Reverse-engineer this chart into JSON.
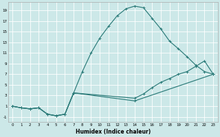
{
  "xlabel": "Humidex (Indice chaleur)",
  "bg_color": "#cce8e8",
  "line_color": "#2a7a78",
  "xlim": [
    -0.5,
    23.5
  ],
  "ylim": [
    -2.0,
    20.5
  ],
  "xticks": [
    0,
    1,
    2,
    3,
    4,
    5,
    6,
    7,
    8,
    9,
    10,
    11,
    12,
    13,
    14,
    15,
    16,
    17,
    18,
    19,
    20,
    21,
    22,
    23
  ],
  "yticks": [
    -1,
    1,
    3,
    5,
    7,
    9,
    11,
    13,
    15,
    17,
    19
  ],
  "curve1_x": [
    0,
    1,
    2,
    3,
    4,
    5,
    6,
    7,
    8,
    9,
    10,
    11,
    12,
    13,
    14,
    15,
    16,
    17,
    18,
    19,
    20,
    21,
    22,
    23
  ],
  "curve1_y": [
    1.0,
    0.7,
    0.5,
    0.7,
    -0.5,
    -0.8,
    -0.5,
    3.5,
    7.5,
    11.0,
    13.8,
    16.0,
    18.0,
    19.3,
    19.8,
    19.5,
    17.5,
    15.5,
    13.2,
    11.8,
    10.3,
    8.7,
    7.5,
    7.0
  ],
  "curve2_x": [
    0,
    1,
    2,
    3,
    4,
    5,
    6,
    7,
    14,
    15,
    16,
    17,
    18,
    19,
    20,
    21,
    22,
    23
  ],
  "curve2_y": [
    1.0,
    0.7,
    0.5,
    0.7,
    -0.5,
    -0.8,
    -0.5,
    3.5,
    2.5,
    3.3,
    4.5,
    5.5,
    6.2,
    7.0,
    7.5,
    8.5,
    9.5,
    7.0
  ],
  "curve3_x": [
    0,
    1,
    2,
    3,
    4,
    5,
    6,
    7,
    14,
    23
  ],
  "curve3_y": [
    1.0,
    0.7,
    0.5,
    0.7,
    -0.5,
    -0.8,
    -0.5,
    3.5,
    2.0,
    7.0
  ]
}
